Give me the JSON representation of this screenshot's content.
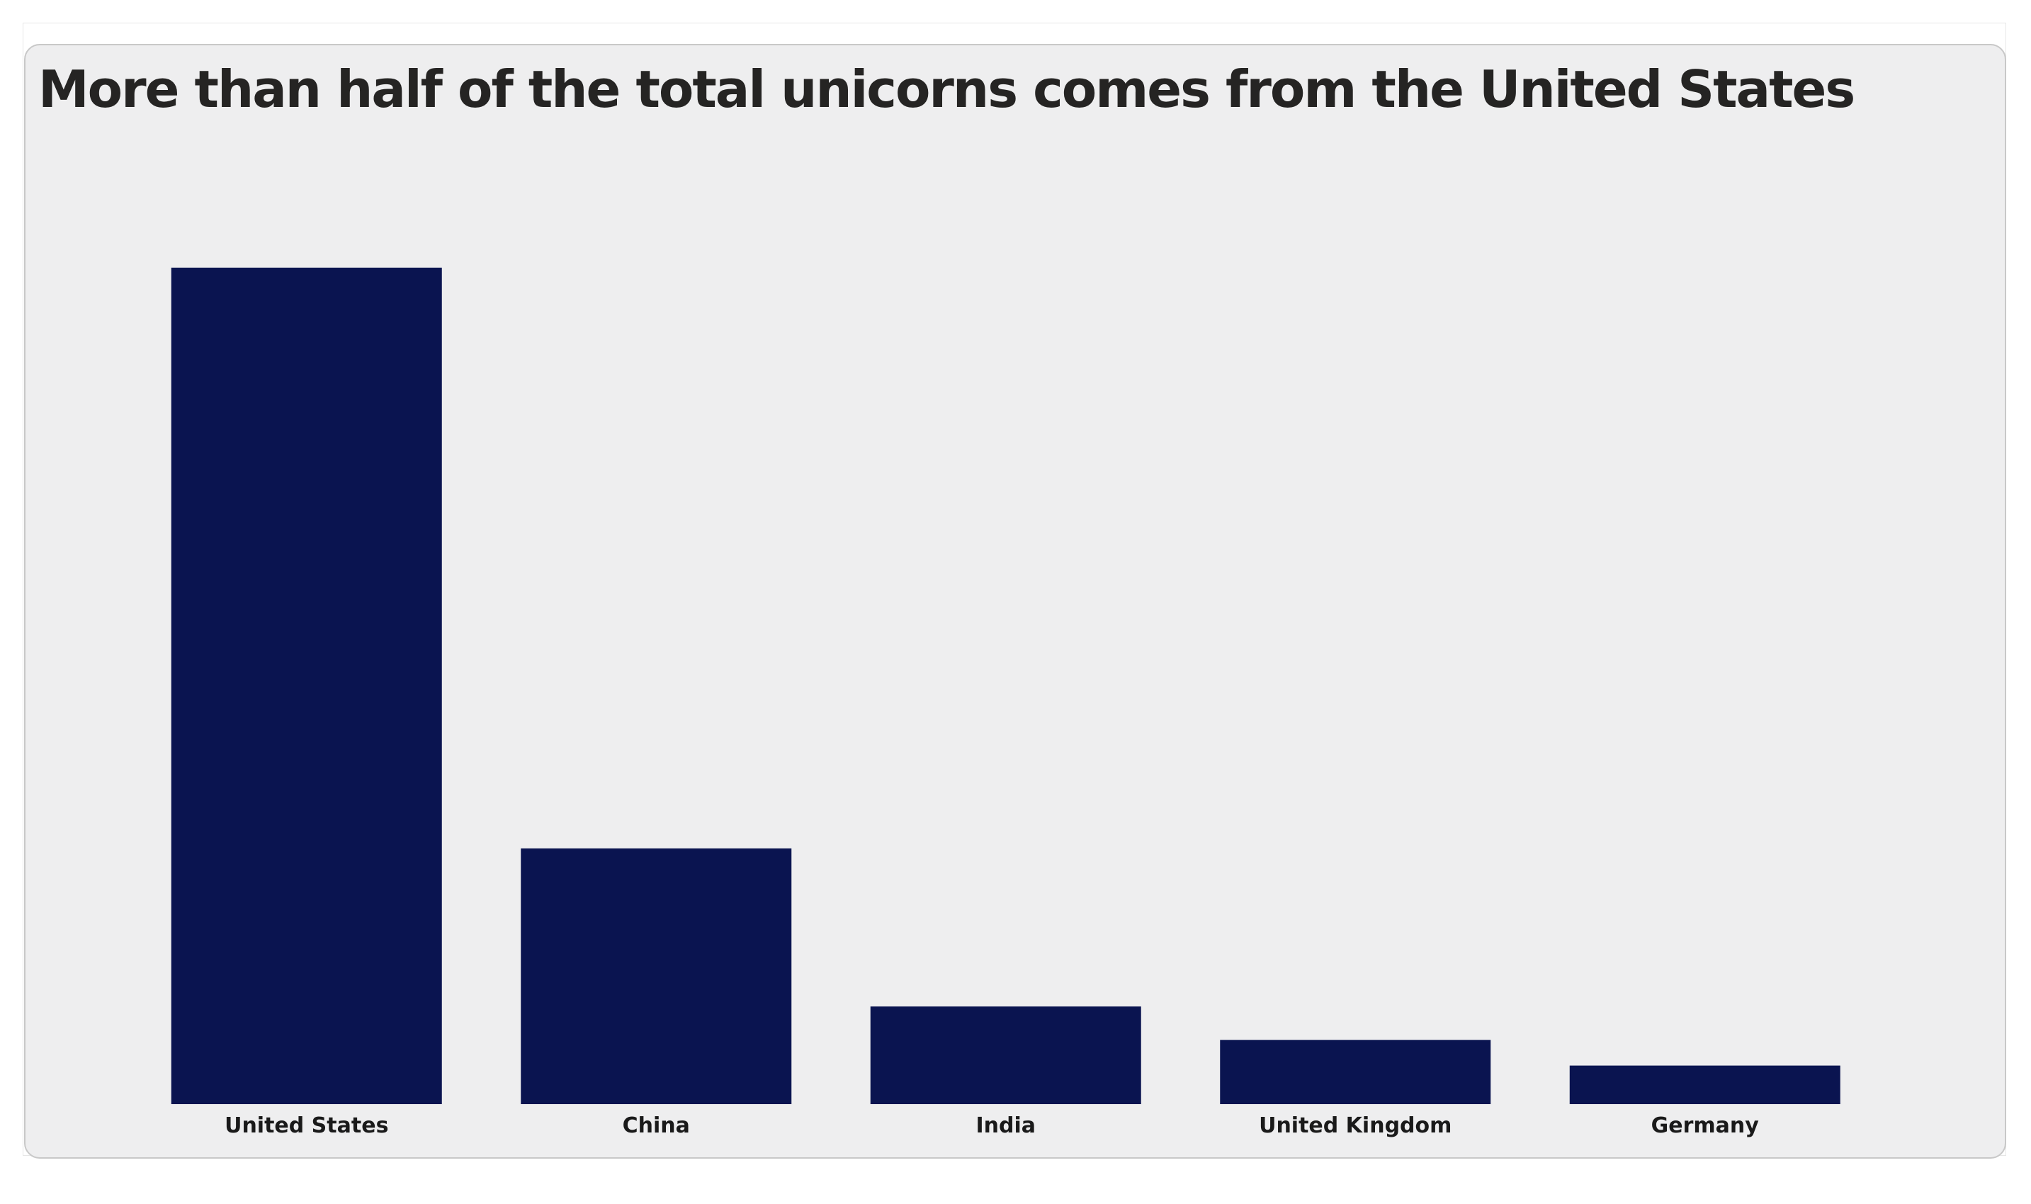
{
  "chart_data": {
    "type": "bar",
    "title": "More than half of the total unicorns comes from the United States",
    "categories": [
      "United States",
      "China",
      "India",
      "United Kingdom",
      "Germany"
    ],
    "values": [
      651,
      199,
      76,
      50,
      30
    ],
    "bar_color": "#0a1450",
    "background_color": "#eeeeef",
    "xlabel": "",
    "ylabel": "",
    "ylim": [
      0,
      700
    ],
    "grid": false,
    "legend": "none"
  }
}
